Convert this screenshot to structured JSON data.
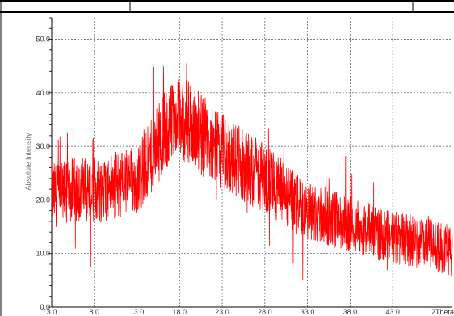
{
  "chart_data": {
    "type": "line",
    "title": "",
    "xlabel": "2Theta",
    "ylabel": "Absolute Intensity",
    "xlim": [
      3.0,
      50.0
    ],
    "ylim": [
      0.0,
      54.0
    ],
    "x_ticks": [
      "3.0",
      "8.0",
      "13.0",
      "18.0",
      "23.0",
      "28.0",
      "33.0",
      "38.0",
      "43.0"
    ],
    "y_ticks": [
      "0.0",
      "10.0",
      "20.0",
      "30.0",
      "40.0",
      "50.0"
    ],
    "grid": true,
    "line_color": "#ff0000",
    "grid_color": "#555555",
    "series": [
      {
        "x": [
          3.0,
          4.0,
          5.0,
          6.0,
          7.0,
          8.0,
          9.0,
          10.0,
          11.0,
          12.0,
          13.0,
          14.0,
          15.0,
          16.0,
          17.0,
          18.0,
          19.0,
          20.0,
          21.0,
          22.0,
          23.0,
          24.0,
          25.0,
          26.0,
          27.0,
          28.0,
          29.0,
          30.0,
          31.0,
          32.0,
          33.0,
          34.0,
          35.0,
          36.0,
          37.0,
          38.0,
          39.0,
          40.0,
          41.0,
          42.0,
          43.0,
          44.0,
          45.0,
          46.0,
          47.0,
          48.0,
          49.0,
          50.0
        ],
        "values": [
          21,
          21,
          21.5,
          22,
          22,
          22,
          22,
          22.5,
          23,
          23.5,
          24,
          26,
          29,
          32,
          34,
          35,
          34.5,
          33,
          31.5,
          30,
          29,
          28,
          27,
          26,
          25,
          24,
          23,
          21.5,
          20,
          19,
          18,
          17.5,
          17,
          16.5,
          16,
          15.5,
          15,
          14.5,
          14,
          13.5,
          13,
          12.5,
          12.5,
          12,
          12,
          11.5,
          11,
          10.5
        ],
        "noise_amplitude": 6
      }
    ]
  }
}
